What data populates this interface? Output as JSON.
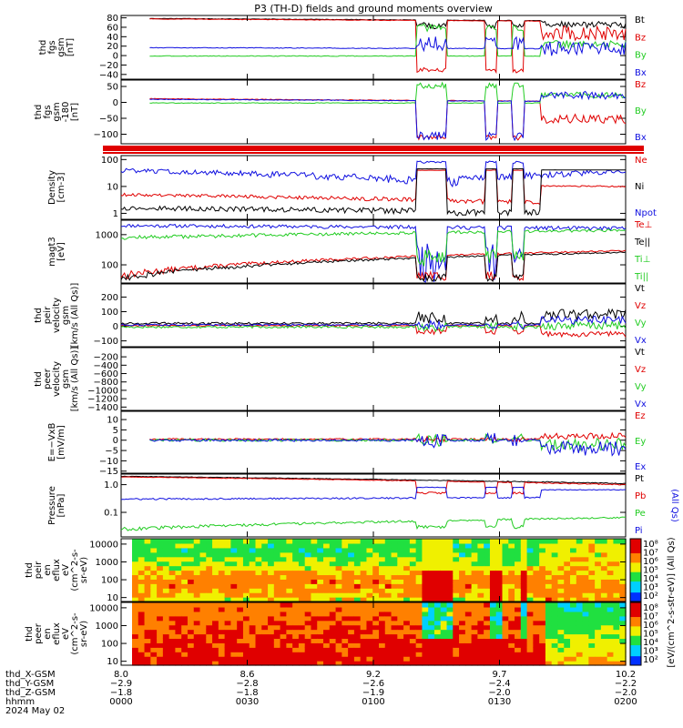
{
  "title": "P3 (TH-D) fields and ground moments overview",
  "colors": {
    "black": "#000000",
    "red": "#e00000",
    "green": "#22cc22",
    "blue": "#1010e0"
  },
  "chart_data": [
    {
      "type": "line",
      "id": "p1",
      "ylabel": [
        "thd",
        "fgs",
        "gsm",
        "[nT]"
      ],
      "ylim": [
        -50,
        85
      ],
      "yticks": [
        {
          "v": 80,
          "l": "80"
        },
        {
          "v": 60,
          "l": "60"
        },
        {
          "v": 40,
          "l": "40"
        },
        {
          "v": 20,
          "l": "20"
        },
        {
          "v": 0,
          "l": "0"
        },
        {
          "v": -20,
          "l": "−20"
        },
        {
          "v": -40,
          "l": "−40"
        }
      ],
      "legend": [
        {
          "name": "Bt",
          "color": "#000000"
        },
        {
          "name": "Bz",
          "color": "#e00000"
        },
        {
          "name": "By",
          "color": "#22cc22"
        },
        {
          "name": "Bx",
          "color": "#1010e0"
        }
      ]
    },
    {
      "type": "line",
      "id": "p2",
      "ylabel": [
        "thd",
        "fgs",
        "gsm",
        "-180",
        "[nT]"
      ],
      "ylim": [
        -130,
        70
      ],
      "yticks": [
        {
          "v": 50,
          "l": "50"
        },
        {
          "v": 0,
          "l": "0"
        },
        {
          "v": -50,
          "l": "−50"
        },
        {
          "v": -100,
          "l": "−100"
        }
      ],
      "legend": [
        {
          "name": "Bz",
          "color": "#e00000"
        },
        {
          "name": "By",
          "color": "#22cc22"
        },
        {
          "name": "Bx",
          "color": "#1010e0"
        }
      ]
    },
    {
      "type": "line",
      "id": "p3",
      "ylabel": [
        "Density",
        "[cm-3]"
      ],
      "ylim": [
        0.6,
        140
      ],
      "scale": "log",
      "yticks": [
        {
          "v": 100,
          "l": "100"
        },
        {
          "v": 10,
          "l": "10"
        },
        {
          "v": 1,
          "l": "1"
        }
      ],
      "legend": [
        {
          "name": "Ne",
          "color": "#e00000"
        },
        {
          "name": "Ni",
          "color": "#000000"
        },
        {
          "name": "Npot",
          "color": "#1010e0"
        }
      ]
    },
    {
      "type": "line",
      "id": "p4",
      "ylabel": [
        "magt3",
        "[eV]"
      ],
      "ylim": [
        25,
        3000
      ],
      "scale": "log",
      "yticks": [
        {
          "v": 1000,
          "l": "1000"
        },
        {
          "v": 100,
          "l": "100"
        }
      ],
      "legend": [
        {
          "name": "Te⊥",
          "color": "#e00000"
        },
        {
          "name": "Te||",
          "color": "#000000"
        },
        {
          "name": "Ti⊥",
          "color": "#22cc22"
        },
        {
          "name": "Ti||",
          "color": "#22cc22"
        }
      ]
    },
    {
      "type": "line",
      "id": "p5",
      "ylabel": [
        "thd",
        "peir",
        "velocity",
        "gsm",
        "[km/s (All Qs)]"
      ],
      "ylim": [
        -140,
        290
      ],
      "yticks": [
        {
          "v": 200,
          "l": "200"
        },
        {
          "v": 100,
          "l": "100"
        },
        {
          "v": 0,
          "l": "0"
        },
        {
          "v": -100,
          "l": "−100"
        }
      ],
      "legend": [
        {
          "name": "Vt",
          "color": "#000000"
        },
        {
          "name": "Vz",
          "color": "#e00000"
        },
        {
          "name": "Vy",
          "color": "#22cc22"
        },
        {
          "name": "Vx",
          "color": "#1010e0"
        }
      ]
    },
    {
      "type": "line",
      "id": "p6",
      "ylabel": [
        "thd",
        "peer",
        "velocity",
        "gsm",
        "[km/s (All Qs)]"
      ],
      "ylim": [
        -1480,
        20
      ],
      "yticks": [
        {
          "v": -200,
          "l": "−200"
        },
        {
          "v": -400,
          "l": "−400"
        },
        {
          "v": -600,
          "l": "−600"
        },
        {
          "v": -800,
          "l": "−800"
        },
        {
          "v": -1000,
          "l": "−1000"
        },
        {
          "v": -1200,
          "l": "−1200"
        },
        {
          "v": -1400,
          "l": "−1400"
        }
      ],
      "legend": [
        {
          "name": "Vt",
          "color": "#000000"
        },
        {
          "name": "Vz",
          "color": "#e00000"
        },
        {
          "name": "Vy",
          "color": "#22cc22"
        },
        {
          "name": "Vx",
          "color": "#1010e0"
        }
      ]
    },
    {
      "type": "line",
      "id": "p7",
      "ylabel": [
        "E=−VxB",
        "[mV/m]"
      ],
      "ylim": [
        -16,
        14
      ],
      "yticks": [
        {
          "v": 10,
          "l": "10"
        },
        {
          "v": 5,
          "l": "5"
        },
        {
          "v": 0,
          "l": "0"
        },
        {
          "v": -5,
          "l": "−5"
        },
        {
          "v": -10,
          "l": "−10"
        },
        {
          "v": -15,
          "l": "−15"
        }
      ],
      "legend": [
        {
          "name": "Ez",
          "color": "#e00000"
        },
        {
          "name": "Ey",
          "color": "#22cc22"
        },
        {
          "name": "Ex",
          "color": "#1010e0"
        }
      ]
    },
    {
      "type": "line",
      "id": "p8",
      "ylabel": [
        "Pressure",
        "[nPa]"
      ],
      "ylim": [
        0.013,
        2.4
      ],
      "scale": "log",
      "yticks": [
        {
          "v": 1,
          "l": "1.0"
        },
        {
          "v": 0.1,
          "l": "0.1"
        }
      ],
      "legend": [
        {
          "name": "Pt",
          "color": "#000000"
        },
        {
          "name": "Pb",
          "color": "#e00000"
        },
        {
          "name": "Pe",
          "color": "#22cc22"
        },
        {
          "name": "Pi",
          "color": "#1010e0"
        }
      ],
      "legend_note": "(All Qs)"
    },
    {
      "type": "heatmap",
      "id": "p9",
      "ylabel": [
        "thd",
        "peir",
        "en",
        "eflux",
        "eV",
        "(cm^2-s-",
        "sr-eV)"
      ],
      "ylim": [
        6,
        20000
      ],
      "scale": "log",
      "yticks": [
        {
          "v": 10000,
          "l": "10000"
        },
        {
          "v": 1000,
          "l": "1000"
        },
        {
          "v": 100,
          "l": "100"
        },
        {
          "v": 10,
          "l": "10"
        }
      ]
    },
    {
      "type": "heatmap",
      "id": "p10",
      "ylabel": [
        "thd",
        "peer",
        "en",
        "eflux",
        "eV",
        "(cm^2-s-",
        "sr-eV)"
      ],
      "ylim": [
        6,
        20000
      ],
      "scale": "log",
      "yticks": [
        {
          "v": 10000,
          "l": "10000"
        },
        {
          "v": 1000,
          "l": "1000"
        },
        {
          "v": 100,
          "l": "100"
        },
        {
          "v": 10,
          "l": "10"
        }
      ]
    }
  ],
  "colorbar": {
    "label": "[eV/(cm^2-s-str-eV)] (All Qs)",
    "ticks": [
      "10^8",
      "10^7",
      "10^6",
      "10^5",
      "10^4",
      "10^3",
      "10^2"
    ],
    "ticks_upper": [
      "10^8",
      "10^7",
      "10^6",
      "10^5",
      "10^4",
      "10^3",
      "10^2"
    ]
  },
  "xaxis": {
    "row_labels": [
      "thd_X-GSM",
      "thd_Y-GSM",
      "thd_Z-GSM",
      "hhmm",
      "2024 May 02"
    ],
    "columns": [
      {
        "x": "8.0",
        "y": "−2.9",
        "z": "−1.8",
        "t": "0000"
      },
      {
        "x": "8.6",
        "y": "−2.8",
        "z": "−1.8",
        "t": "0030"
      },
      {
        "x": "9.2",
        "y": "−2.6",
        "z": "−1.9",
        "t": "0100"
      },
      {
        "x": "9.7",
        "y": "−2.4",
        "z": "−2.0",
        "t": "0130"
      },
      {
        "x": "10.2",
        "y": "−2.2",
        "z": "−2.0",
        "t": "0200"
      }
    ]
  }
}
